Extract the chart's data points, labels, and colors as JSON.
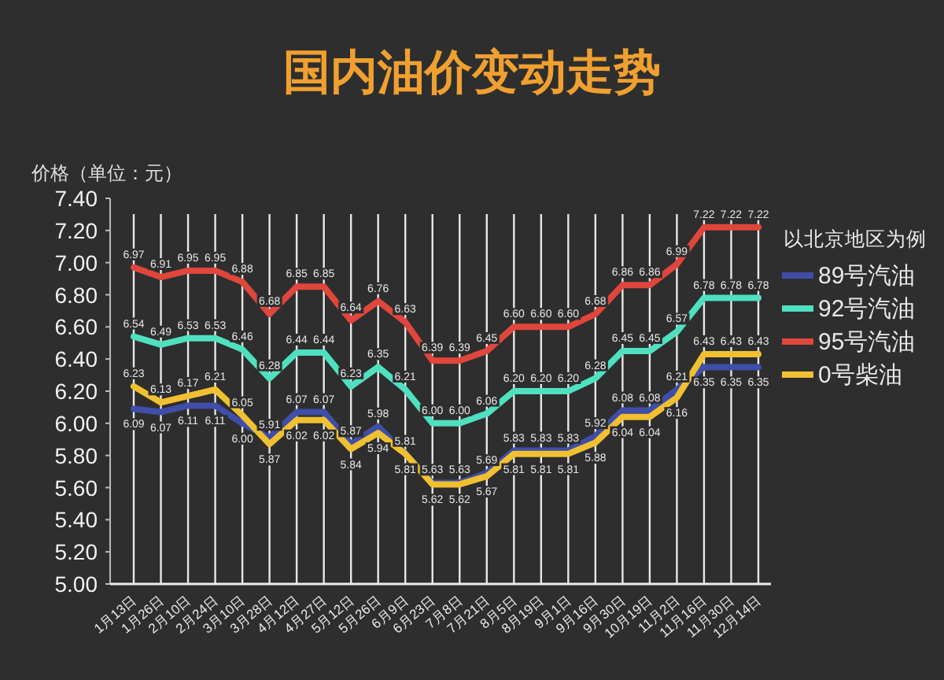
{
  "chart_data": {
    "type": "line",
    "title": "国内油价变动走势",
    "ylabel": "价格（单位：元）",
    "legend_title": "以北京地区为例",
    "categories": [
      "1月13日",
      "1月26日",
      "2月10日",
      "2月24日",
      "3月10日",
      "3月28日",
      "4月12日",
      "4月27日",
      "5月12日",
      "5月26日",
      "6月9日",
      "6月23日",
      "7月8日",
      "7月21日",
      "8月5日",
      "8月19日",
      "9月1日",
      "9月16日",
      "9月30日",
      "10月19日",
      "11月2日",
      "11月16日",
      "11月30日",
      "12月14日"
    ],
    "series": [
      {
        "name": "89号汽油",
        "color": "#3f4ea8",
        "values": [
          6.09,
          6.07,
          6.11,
          6.11,
          6.0,
          5.91,
          6.07,
          6.07,
          5.87,
          5.98,
          5.81,
          5.63,
          5.63,
          5.69,
          5.83,
          5.83,
          5.83,
          5.92,
          6.08,
          6.08,
          6.21,
          6.35,
          6.35,
          6.35
        ],
        "value_labels": [
          "6.09",
          "6.07",
          "6.11",
          "6.11",
          "6.00",
          "5.91",
          "6.07",
          "6.07",
          "5.87",
          "5.98",
          "5.81",
          "5.63",
          "5.63",
          "5.69",
          "5.83",
          "5.83",
          "5.83",
          "5.92",
          "6.08",
          "6.08",
          "6.21",
          "6.35",
          "6.35",
          "6.35"
        ]
      },
      {
        "name": "92号汽油",
        "color": "#4fe0c0",
        "values": [
          6.54,
          6.49,
          6.53,
          6.53,
          6.46,
          6.28,
          6.44,
          6.44,
          6.23,
          6.35,
          6.21,
          6.0,
          6.0,
          6.06,
          6.2,
          6.2,
          6.2,
          6.28,
          6.45,
          6.45,
          6.57,
          6.78,
          6.78,
          6.78
        ],
        "value_labels": [
          "6.54",
          "6.49",
          "6.53",
          "6.53",
          "6.46",
          "6.28",
          "6.44",
          "6.44",
          "6.23",
          "6.35",
          "6.21",
          "6.00",
          "6.00",
          "6.06",
          "6.20",
          "6.20",
          "6.20",
          "6.28",
          "6.45",
          "6.45",
          "6.57",
          "6.78",
          "6.78",
          "6.78"
        ]
      },
      {
        "name": "95号汽油",
        "color": "#e0463c",
        "values": [
          6.97,
          6.91,
          6.95,
          6.95,
          6.88,
          6.68,
          6.85,
          6.85,
          6.64,
          6.76,
          6.63,
          6.39,
          6.39,
          6.45,
          6.6,
          6.6,
          6.6,
          6.68,
          6.86,
          6.86,
          6.99,
          7.22,
          7.22,
          7.22
        ],
        "value_labels": [
          "6.97",
          "6.91",
          "6.95",
          "6.95",
          "6.88",
          "6.68",
          "6.85",
          "6.85",
          "6.64",
          "6.76",
          "6.63",
          "6.39",
          "6.39",
          "6.45",
          "6.60",
          "6.60",
          "6.60",
          "6.68",
          "6.86",
          "6.86",
          "6.99",
          "7.22",
          "7.22",
          "7.22"
        ]
      },
      {
        "name": "0号柴油",
        "color": "#f0c030",
        "values": [
          6.23,
          6.13,
          6.17,
          6.21,
          6.05,
          5.87,
          6.02,
          6.02,
          5.84,
          5.94,
          5.81,
          5.62,
          5.62,
          5.67,
          5.81,
          5.81,
          5.81,
          5.88,
          6.04,
          6.04,
          6.16,
          6.43,
          6.43,
          6.43
        ],
        "value_labels": [
          "6.23",
          "6.13",
          "6.17",
          "6.21",
          "6.05",
          "5.87",
          "6.02",
          "6.02",
          "5.84",
          "5.94",
          "5.81",
          "5.62",
          "5.62",
          "5.67",
          "5.81",
          "5.81",
          "5.81",
          "5.88",
          "6.04",
          "6.04",
          "6.16",
          "6.43",
          "6.43",
          "6.43"
        ]
      }
    ],
    "ylim": [
      5.0,
      7.4
    ],
    "yticks": [
      {
        "value": 5.0,
        "label": "5.00"
      },
      {
        "value": 5.2,
        "label": "5.20"
      },
      {
        "value": 5.4,
        "label": "5.40"
      },
      {
        "value": 5.6,
        "label": "5.60"
      },
      {
        "value": 5.8,
        "label": "5.80"
      },
      {
        "value": 6.0,
        "label": "6.00"
      },
      {
        "value": 6.2,
        "label": "6.20"
      },
      {
        "value": 6.4,
        "label": "6.40"
      },
      {
        "value": 6.6,
        "label": "6.60"
      },
      {
        "value": 6.8,
        "label": "6.80"
      },
      {
        "value": 7.0,
        "label": "7.00"
      },
      {
        "value": 7.2,
        "label": "7.20"
      },
      {
        "value": 7.4,
        "label": "7.40"
      }
    ],
    "grid": "x",
    "legend": "right",
    "marker": "none",
    "line_style": "solid"
  }
}
